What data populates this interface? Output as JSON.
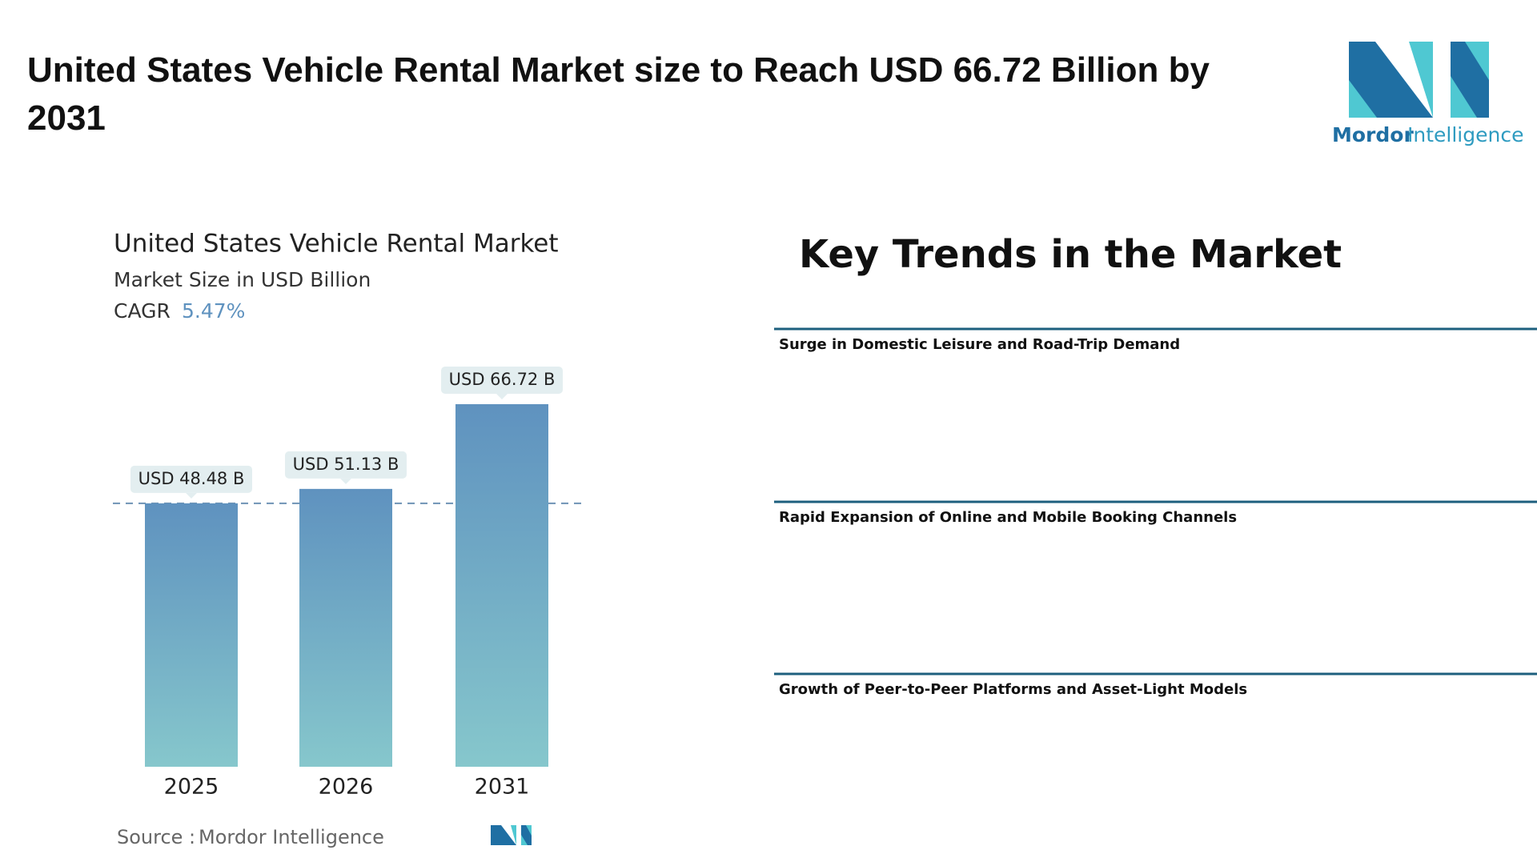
{
  "header": {
    "title": "United States Vehicle Rental Market size to Reach USD 66.72 Billion by 2031",
    "logo_word1": "Mordor",
    "logo_word2": "Intelligence"
  },
  "chart_data": {
    "type": "bar",
    "title": "United States Vehicle Rental Market",
    "subtitle": "Market Size in USD Billion",
    "cagr_label": "CAGR",
    "cagr": "5.47%",
    "categories": [
      "2025",
      "2026",
      "2031"
    ],
    "values": [
      48.48,
      51.13,
      66.72
    ],
    "value_labels": [
      "USD 48.48 B",
      "USD 51.13 B",
      "USD 66.72 B"
    ],
    "color": "#5f92bf",
    "source_label": "Source :",
    "source": "Mordor Intelligence"
  },
  "trends": {
    "heading": "Key Trends in the Market",
    "items": [
      "Surge in Domestic Leisure and Road-Trip Demand",
      "Rapid Expansion of Online and Mobile Booking Channels",
      "Growth of Peer-to-Peer Platforms and Asset-Light Models"
    ]
  }
}
